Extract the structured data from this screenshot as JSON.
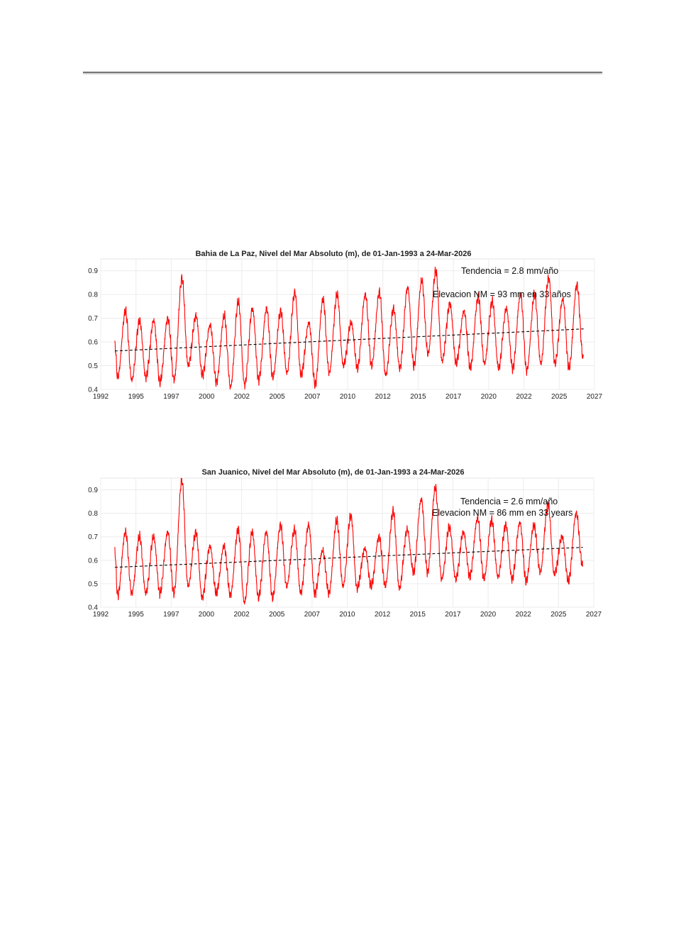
{
  "chart_data": [
    {
      "type": "line",
      "title": "Bahia de La Paz, Nivel del Mar Absoluto (m), de 01-Jan-1993 a 24-Mar-2026",
      "xlim": [
        1992,
        2027
      ],
      "ylim": [
        0.4,
        0.95
      ],
      "grid": true,
      "x_tick_labels": [
        "1992",
        "1995",
        "1997",
        "2000",
        "2002",
        "2005",
        "2007",
        "2010",
        "2012",
        "2015",
        "2017",
        "2020",
        "2022",
        "2025",
        "2027"
      ],
      "y_ticks": [
        0.4,
        0.5,
        0.6,
        0.7,
        0.8,
        0.9
      ],
      "y_tick_labels": [
        "0.4",
        "0.5",
        "0.6",
        "0.7",
        "0.8",
        "0.9"
      ],
      "annotations": [
        "Tendencia = 2.8 mm/año",
        "Elevacion NM = 93 mm en 33 años"
      ],
      "series": [
        {
          "name": "sea level",
          "color": "#ff0000",
          "start": [
            1993.0,
            0.59
          ],
          "end": [
            2026.23,
            0.57
          ],
          "annual_years": [
            1993,
            1994,
            1995,
            1996,
            1997,
            1998,
            1999,
            2000,
            2001,
            2002,
            2003,
            2004,
            2005,
            2006,
            2007,
            2008,
            2009,
            2010,
            2011,
            2012,
            2013,
            2014,
            2015,
            2016,
            2017,
            2018,
            2019,
            2020,
            2021,
            2022,
            2023,
            2024,
            2025,
            2026
          ],
          "annual_troughs": [
            0.45,
            0.44,
            0.45,
            0.43,
            0.44,
            0.5,
            0.46,
            0.43,
            0.41,
            0.42,
            0.44,
            0.45,
            0.47,
            0.46,
            0.42,
            0.47,
            0.5,
            0.49,
            0.5,
            0.46,
            0.49,
            0.5,
            0.55,
            0.52,
            0.51,
            0.49,
            0.51,
            0.49,
            0.49,
            0.48,
            0.51,
            0.51,
            0.49,
            0.53
          ],
          "annual_peaks": [
            0.73,
            0.69,
            0.69,
            0.7,
            0.87,
            0.71,
            0.67,
            0.71,
            0.77,
            0.74,
            0.74,
            0.73,
            0.81,
            0.68,
            0.78,
            0.8,
            0.68,
            0.8,
            0.81,
            0.74,
            0.83,
            0.86,
            0.9,
            0.76,
            0.73,
            0.79,
            0.77,
            0.74,
            0.8,
            0.8,
            0.87,
            0.78,
            0.84
          ]
        },
        {
          "name": "trend",
          "color": "#000000",
          "style": "dashed",
          "x": [
            1993.0,
            2026.23
          ],
          "y": [
            0.562,
            0.655
          ]
        }
      ]
    },
    {
      "type": "line",
      "title": "San Juanico, Nivel del Mar Absoluto (m), de 01-Jan-1993 a 24-Mar-2026",
      "xlim": [
        1992,
        2027
      ],
      "ylim": [
        0.4,
        0.95
      ],
      "grid": true,
      "x_tick_labels": [
        "1992",
        "1995",
        "1997",
        "2000",
        "2002",
        "2005",
        "2007",
        "2010",
        "2012",
        "2015",
        "2017",
        "2020",
        "2022",
        "2025",
        "2027"
      ],
      "y_ticks": [
        0.4,
        0.5,
        0.6,
        0.7,
        0.8,
        0.9
      ],
      "y_tick_labels": [
        "0.4",
        "0.5",
        "0.6",
        "0.7",
        "0.8",
        "0.9"
      ],
      "annotations": [
        "Tendencia = 2.6 mm/año",
        "Elevacion NM = 86 mm en 33 years"
      ],
      "series": [
        {
          "name": "sea level",
          "color": "#ff0000",
          "start": [
            1993.0,
            0.64
          ],
          "end": [
            2026.23,
            0.58
          ],
          "annual_years": [
            1993,
            1994,
            1995,
            1996,
            1997,
            1998,
            1999,
            2000,
            2001,
            2002,
            2003,
            2004,
            2005,
            2006,
            2007,
            2008,
            2009,
            2010,
            2011,
            2012,
            2013,
            2014,
            2015,
            2016,
            2017,
            2018,
            2019,
            2020,
            2021,
            2022,
            2023,
            2024,
            2025,
            2026
          ],
          "annual_troughs": [
            0.45,
            0.46,
            0.46,
            0.46,
            0.46,
            0.49,
            0.44,
            0.46,
            0.45,
            0.42,
            0.44,
            0.44,
            0.49,
            0.46,
            0.46,
            0.46,
            0.49,
            0.48,
            0.49,
            0.49,
            0.48,
            0.55,
            0.55,
            0.52,
            0.52,
            0.53,
            0.52,
            0.53,
            0.52,
            0.51,
            0.55,
            0.54,
            0.51,
            0.58
          ],
          "annual_peaks": [
            0.72,
            0.7,
            0.7,
            0.72,
            0.94,
            0.72,
            0.66,
            0.66,
            0.73,
            0.72,
            0.72,
            0.75,
            0.73,
            0.75,
            0.64,
            0.77,
            0.79,
            0.65,
            0.7,
            0.81,
            0.73,
            0.86,
            0.91,
            0.74,
            0.72,
            0.78,
            0.77,
            0.75,
            0.76,
            0.75,
            0.84,
            0.7,
            0.8
          ]
        },
        {
          "name": "trend",
          "color": "#000000",
          "style": "dashed",
          "x": [
            1993.0,
            2026.23
          ],
          "y": [
            0.57,
            0.655
          ]
        }
      ]
    }
  ]
}
